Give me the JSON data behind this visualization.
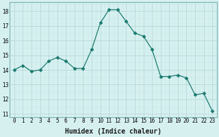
{
  "x": [
    0,
    1,
    2,
    3,
    4,
    5,
    6,
    7,
    8,
    9,
    10,
    11,
    12,
    13,
    14,
    15,
    16,
    17,
    18,
    19,
    20,
    21,
    22,
    23
  ],
  "y": [
    14.0,
    14.3,
    13.9,
    14.0,
    14.6,
    14.85,
    14.6,
    14.1,
    14.1,
    15.4,
    17.2,
    18.1,
    18.1,
    17.3,
    16.5,
    16.3,
    15.4,
    13.55,
    13.55,
    13.65,
    13.45,
    12.3,
    12.4,
    11.2
  ],
  "line_color": "#1a7a6e",
  "marker": "D",
  "marker_size": 2.5,
  "bg_color": "#d6f0f0",
  "grid_major_color": "#b8d8d8",
  "grid_minor_color": "#c8e8e8",
  "xlabel": "Humidex (Indice chaleur)",
  "ylim": [
    10.8,
    18.6
  ],
  "xlim": [
    -0.5,
    23.5
  ],
  "yticks": [
    11,
    12,
    13,
    14,
    15,
    16,
    17,
    18
  ],
  "xticks": [
    0,
    1,
    2,
    3,
    4,
    5,
    6,
    7,
    8,
    9,
    10,
    11,
    12,
    13,
    14,
    15,
    16,
    17,
    18,
    19,
    20,
    21,
    22,
    23
  ],
  "tick_fontsize": 5.5,
  "xlabel_fontsize": 7,
  "spine_color": "#7ab0b0"
}
